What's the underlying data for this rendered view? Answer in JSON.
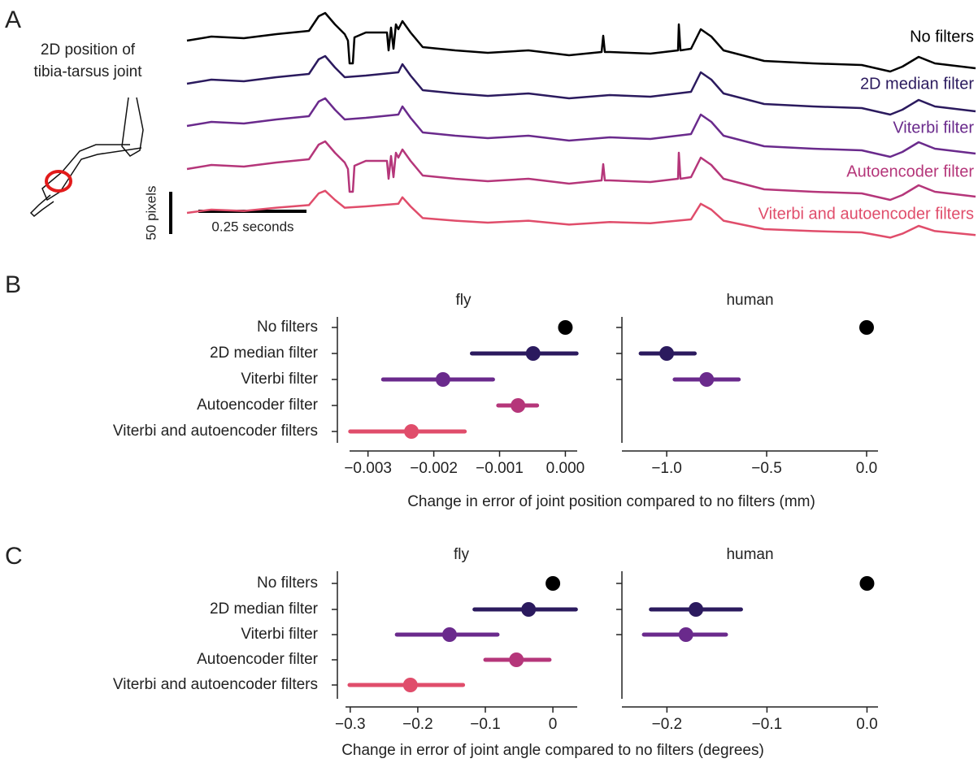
{
  "panel_labels": [
    "A",
    "B",
    "C"
  ],
  "panel_a": {
    "inset_label": [
      "2D position of",
      "tibia-tarsus joint"
    ],
    "trace_labels": [
      "No filters",
      "2D median filter",
      "Viterbi filter",
      "Autoencoder filter",
      "Viterbi and autoencoder filters"
    ],
    "scale_y": "50 pixels",
    "scale_x": "0.25 seconds"
  },
  "chart_data": [
    {
      "type": "dot",
      "title": "fly",
      "xlabel": "Change in error of joint position compared to no filters (mm)",
      "categories": [
        "No filters",
        "2D median filter",
        "Viterbi filter",
        "Autoencoder filter",
        "Viterbi and autoencoder filters"
      ],
      "colors": [
        "#000000",
        "#2b1a5e",
        "#6a2a8c",
        "#b5367a",
        "#e04d6b"
      ],
      "values": [
        0.0,
        -0.00049,
        -0.00186,
        -0.00072,
        -0.00234
      ],
      "lower": [
        0.0,
        -0.00142,
        -0.00277,
        -0.00102,
        -0.00327
      ],
      "upper": [
        0.0,
        0.00017,
        -0.0011,
        -0.00043,
        -0.00153
      ],
      "xlim": [
        -0.00328,
        0.00018
      ],
      "xticks": [
        {
          "value": -0.003,
          "label": "−0.003"
        },
        {
          "value": -0.002,
          "label": "−0.002"
        },
        {
          "value": -0.001,
          "label": "−0.001"
        },
        {
          "value": 0.0,
          "label": "0.000"
        }
      ]
    },
    {
      "type": "dot",
      "title": "human",
      "colors": [
        "#000000",
        "#2b1a5e",
        "#6a2a8c"
      ],
      "values": [
        0.0,
        -1.0,
        -0.8
      ],
      "lower": [
        0.0,
        -1.13,
        -0.96
      ],
      "upper": [
        0.0,
        -0.86,
        -0.64
      ],
      "xlim": [
        -1.224,
        0.057
      ],
      "xticks": [
        {
          "value": -1.0,
          "label": "−1.0"
        },
        {
          "value": -0.5,
          "label": "−0.5"
        },
        {
          "value": 0.0,
          "label": "0.0"
        }
      ]
    },
    {
      "type": "dot",
      "title": "fly",
      "xlabel": "Change in error of joint angle compared to no filters (degrees)",
      "categories": [
        "No filters",
        "2D median filter",
        "Viterbi filter",
        "Autoencoder filter",
        "Viterbi and autoencoder filters"
      ],
      "colors": [
        "#000000",
        "#2b1a5e",
        "#6a2a8c",
        "#b5367a",
        "#e04d6b"
      ],
      "values": [
        0.0,
        -0.036,
        -0.153,
        -0.054,
        -0.211
      ],
      "lower": [
        0.0,
        -0.116,
        -0.231,
        -0.1,
        -0.301
      ],
      "upper": [
        0.0,
        0.034,
        -0.082,
        -0.005,
        -0.133
      ],
      "xlim": [
        -0.307,
        0.036
      ],
      "xticks": [
        {
          "value": -0.3,
          "label": "−0.3"
        },
        {
          "value": -0.2,
          "label": "−0.2"
        },
        {
          "value": -0.1,
          "label": "−0.1"
        },
        0.0
      ]
    },
    {
      "type": "dot",
      "title": "human",
      "colors": [
        "#000000",
        "#2b1a5e",
        "#6a2a8c"
      ],
      "values": [
        0.0,
        -0.171,
        -0.181
      ],
      "lower": [
        0.0,
        -0.216,
        -0.223
      ],
      "upper": [
        0.0,
        -0.126,
        -0.141
      ],
      "xlim": [
        -0.245,
        0.011
      ],
      "xticks": [
        {
          "value": -0.2,
          "label": "−0.2"
        },
        {
          "value": -0.1,
          "label": "−0.1"
        },
        {
          "value": 0.0,
          "label": "0.0"
        }
      ]
    }
  ]
}
